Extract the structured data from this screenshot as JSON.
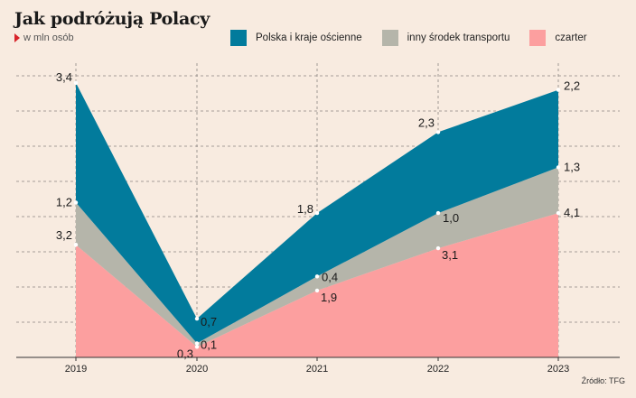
{
  "header": {
    "title": "Jak podróżują Polacy",
    "subtitle": "w mln osób",
    "source": "Źródło: TFG"
  },
  "colors": {
    "polska": "#027b9c",
    "inny": "#b5b5aa",
    "czarter": "#fc9f9f",
    "background": "#f8ebe0"
  },
  "chart_data": {
    "type": "area",
    "stacked": true,
    "title": "Jak podróżują Polacy",
    "ylabel": "w mln osób",
    "x": [
      "2019",
      "2020",
      "2021",
      "2022",
      "2023"
    ],
    "ylim": [
      0,
      8
    ],
    "grid": true,
    "legend_position": "top",
    "series": [
      {
        "name": "czarter",
        "values": [
          3.2,
          0.3,
          1.9,
          3.1,
          4.1
        ],
        "labels": [
          "3,2",
          "0,3",
          "1,9",
          "3,1",
          "4,1"
        ]
      },
      {
        "name": "inny środek transportu",
        "values": [
          1.2,
          0.1,
          0.4,
          1.0,
          1.3
        ],
        "labels": [
          "1,2",
          "0,1",
          "0,4",
          "1,0",
          "1,3"
        ]
      },
      {
        "name": "Polska i kraje ościenne",
        "values": [
          3.4,
          0.7,
          1.8,
          2.3,
          2.2
        ],
        "labels": [
          "3,4",
          "0,7",
          "1,8",
          "2,3",
          "2,2"
        ]
      }
    ]
  }
}
